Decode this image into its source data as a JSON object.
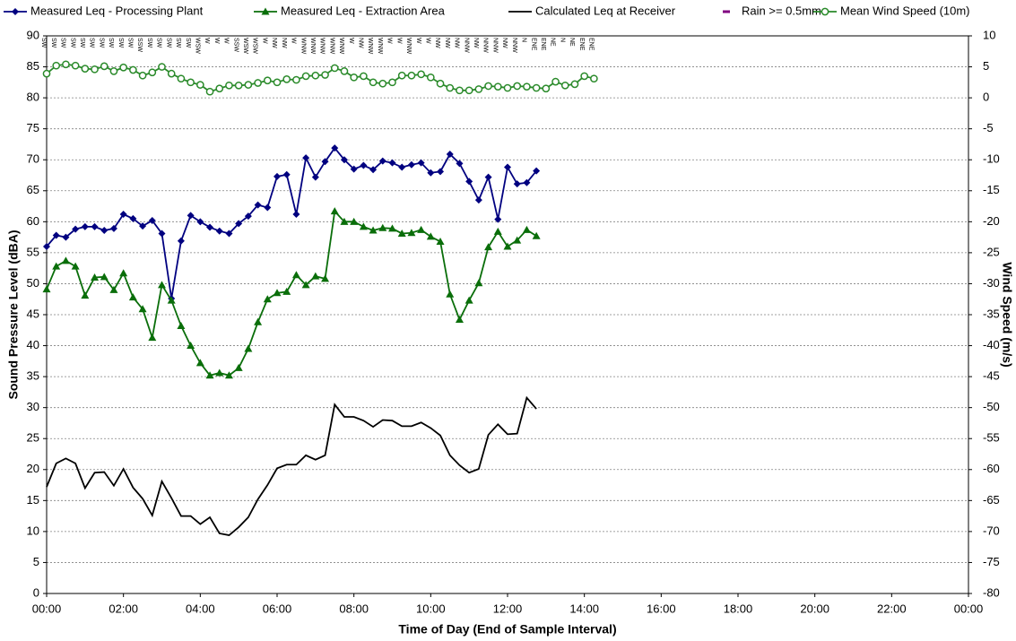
{
  "chart_data": {
    "type": "line",
    "x_label": "Time of Day (End of Sample Interval)",
    "y_label": "Sound Pressure Level (dBA)",
    "y2_label": "Wind Speed (m/s)",
    "x": [
      "00:00",
      "00:15",
      "00:30",
      "00:45",
      "01:00",
      "01:15",
      "01:30",
      "01:45",
      "02:00",
      "02:15",
      "02:30",
      "02:45",
      "03:00",
      "03:15",
      "03:30",
      "03:45",
      "04:00",
      "04:15",
      "04:30",
      "04:45",
      "05:00",
      "05:15",
      "05:30",
      "05:45",
      "06:00",
      "06:15",
      "06:30",
      "06:45",
      "07:00",
      "07:15",
      "07:30",
      "07:45",
      "08:00",
      "08:15",
      "08:30",
      "08:45",
      "09:00",
      "09:15",
      "09:30",
      "09:45",
      "10:00",
      "10:15",
      "10:30",
      "10:45",
      "11:00",
      "11:15",
      "11:30",
      "11:45",
      "12:00",
      "12:15",
      "12:30",
      "12:45",
      "13:00",
      "13:15",
      "13:30",
      "13:45",
      "14:00",
      "14:15"
    ],
    "xlim": [
      0,
      1440
    ],
    "xticks": [
      {
        "value": 0,
        "label": "00:00"
      },
      {
        "value": 120,
        "label": "02:00"
      },
      {
        "value": 240,
        "label": "04:00"
      },
      {
        "value": 360,
        "label": "06:00"
      },
      {
        "value": 480,
        "label": "08:00"
      },
      {
        "value": 600,
        "label": "10:00"
      },
      {
        "value": 720,
        "label": "12:00"
      },
      {
        "value": 840,
        "label": "14:00"
      },
      {
        "value": 960,
        "label": "16:00"
      },
      {
        "value": 1080,
        "label": "18:00"
      },
      {
        "value": 1200,
        "label": "20:00"
      },
      {
        "value": 1320,
        "label": "22:00"
      },
      {
        "value": 1440,
        "label": "00:00"
      }
    ],
    "ylim": [
      0,
      90
    ],
    "yticks": [
      0,
      5,
      10,
      15,
      20,
      25,
      30,
      35,
      40,
      45,
      50,
      55,
      60,
      65,
      70,
      75,
      80,
      85,
      90
    ],
    "y2lim": [
      -80,
      10
    ],
    "y2ticks": [
      -80,
      -75,
      -70,
      -65,
      -60,
      -55,
      -50,
      -45,
      -40,
      -35,
      -30,
      -25,
      -20,
      -15,
      -10,
      -5,
      0,
      5,
      10
    ],
    "grid": true,
    "legend": "top",
    "series": [
      {
        "name": "Measured Leq - Processing Plant",
        "color": "#000080",
        "marker": "diamond",
        "values": [
          56,
          57.8,
          57.5,
          58.8,
          59.2,
          59.2,
          58.6,
          58.9,
          61.2,
          60.5,
          59.3,
          60.2,
          58.1,
          47.6,
          56.9,
          61,
          60,
          59.1,
          58.5,
          58.1,
          59.7,
          60.9,
          62.7,
          62.3,
          67.3,
          67.6,
          61.2,
          70.3,
          67.2,
          69.7,
          71.9,
          70,
          68.5,
          69.1,
          68.4,
          69.8,
          69.5,
          68.8,
          69.2,
          69.5,
          67.9,
          68.1,
          70.9,
          69.4,
          66.5,
          63.5,
          67.2,
          60.4,
          68.8,
          66.1,
          66.3,
          68.2,
          null,
          null,
          null,
          null,
          null,
          null
        ]
      },
      {
        "name": "Measured Leq - Extraction Area",
        "color": "#0a6e0a",
        "marker": "triangle",
        "values": [
          49.1,
          52.8,
          53.7,
          52.8,
          48.1,
          51,
          51.1,
          49,
          51.7,
          47.8,
          45.9,
          41.3,
          49.8,
          47.3,
          43.2,
          40,
          37.2,
          35.2,
          35.6,
          35.2,
          36.4,
          39.5,
          43.8,
          47.5,
          48.5,
          48.7,
          51.4,
          49.8,
          51.2,
          50.8,
          61.7,
          60,
          60,
          59.2,
          58.6,
          59,
          58.9,
          58.1,
          58.2,
          58.7,
          57.6,
          56.8,
          48.3,
          44.2,
          47.3,
          50.1,
          55.9,
          58.4,
          56,
          57,
          58.7,
          57.7,
          null,
          null,
          null,
          null,
          null,
          null
        ]
      },
      {
        "name": "Calculated Leq at Receiver",
        "color": "#000000",
        "marker": "none",
        "values": [
          17.2,
          21,
          21.8,
          21,
          17,
          19.5,
          19.6,
          17.4,
          20.1,
          17.1,
          15.3,
          12.6,
          18.1,
          15.4,
          12.5,
          12.5,
          11.2,
          12.3,
          9.7,
          9.4,
          10.7,
          12.3,
          15.2,
          17.5,
          20.2,
          20.8,
          20.8,
          22.3,
          21.6,
          22.3,
          30.5,
          28.5,
          28.5,
          27.9,
          26.9,
          28,
          27.9,
          27,
          27,
          27.6,
          26.7,
          25.5,
          22.3,
          20.7,
          19.5,
          20.1,
          25.6,
          27.3,
          25.7,
          25.8,
          31.6,
          29.8,
          null,
          null,
          null,
          null,
          null,
          null
        ]
      },
      {
        "name": "Rain >= 0.5mm",
        "color": "#800080",
        "marker": "dash",
        "values": [
          null,
          null,
          null,
          null,
          null,
          null,
          null,
          null,
          null,
          null,
          null,
          null,
          null,
          null,
          null,
          null,
          null,
          null,
          null,
          null,
          null,
          null,
          null,
          null,
          null,
          null,
          null,
          null,
          null,
          null,
          null,
          null,
          null,
          null,
          null,
          null,
          null,
          null,
          null,
          null,
          null,
          null,
          null,
          null,
          null,
          null,
          null,
          null,
          null,
          null,
          null,
          null,
          null,
          null,
          null,
          null,
          null,
          null
        ]
      },
      {
        "name": "Mean Wind Speed (10m)",
        "color": "#2a8a2a",
        "marker": "circle-open",
        "axis": "y2",
        "values": [
          3.9,
          5.2,
          5.4,
          5.2,
          4.7,
          4.6,
          5.1,
          4.3,
          4.9,
          4.5,
          3.6,
          4.1,
          5.0,
          3.9,
          3.1,
          2.5,
          2.1,
          1.0,
          1.5,
          2.0,
          2.0,
          2.1,
          2.4,
          2.8,
          2.5,
          3.0,
          2.9,
          3.5,
          3.6,
          3.7,
          4.8,
          4.3,
          3.3,
          3.5,
          2.5,
          2.3,
          2.5,
          3.6,
          3.6,
          3.8,
          3.3,
          2.3,
          1.6,
          1.2,
          1.2,
          1.4,
          1.9,
          1.8,
          1.6,
          1.9,
          1.8,
          1.6,
          1.5,
          2.6,
          2.0,
          2.2,
          3.5,
          3.1
        ]
      }
    ],
    "wind_directions": [
      "SW",
      "SW",
      "SW",
      "SW",
      "SW",
      "SW",
      "SW",
      "SW",
      "SW",
      "SW",
      "SSW",
      "SW",
      "SW",
      "SW",
      "SW",
      "SW",
      "WSW",
      "W",
      "W",
      "W",
      "SSW",
      "WSW",
      "WSW",
      "W",
      "NW",
      "NW",
      "W",
      "WNW",
      "WNW",
      "WNW",
      "WNW",
      "WNW",
      "W",
      "NW",
      "WNW",
      "WNW",
      "W",
      "W",
      "WNW",
      "W",
      "W",
      "NW",
      "NW",
      "NW",
      "NNW",
      "NW",
      "NNW",
      "NNW",
      "NW",
      "NNW",
      "N",
      "ENE",
      "ENE",
      "NE",
      "N",
      "NE",
      "ENE",
      "ENE"
    ]
  }
}
